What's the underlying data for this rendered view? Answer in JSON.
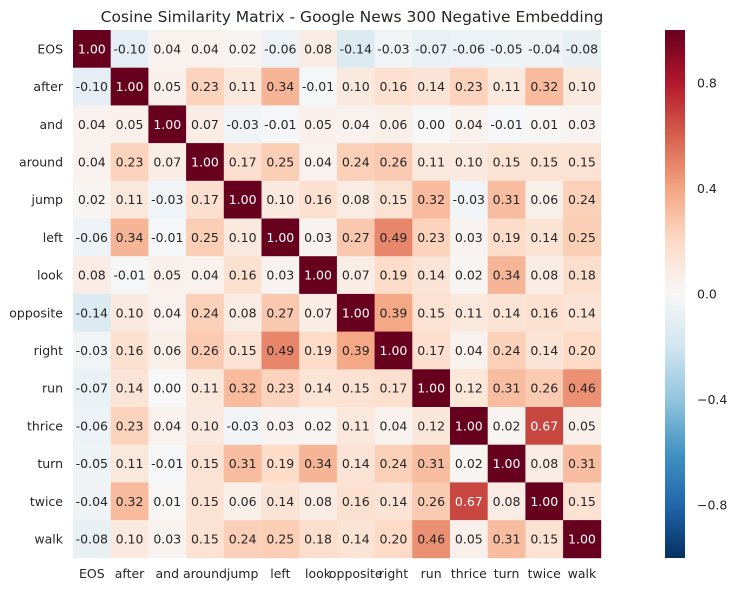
{
  "chart_data": {
    "type": "heatmap",
    "title": "Cosine Similarity Matrix - Google News 300 Negative Embedding",
    "xlabel": "",
    "ylabel": "",
    "labels": [
      "EOS",
      "after",
      "and",
      "around",
      "jump",
      "left",
      "look",
      "opposite",
      "right",
      "run",
      "thrice",
      "turn",
      "twice",
      "walk"
    ],
    "values": [
      [
        1.0,
        -0.1,
        0.04,
        0.04,
        0.02,
        -0.06,
        0.08,
        -0.14,
        -0.03,
        -0.07,
        -0.06,
        -0.05,
        -0.04,
        -0.08
      ],
      [
        -0.1,
        1.0,
        0.05,
        0.23,
        0.11,
        0.34,
        -0.01,
        0.1,
        0.16,
        0.14,
        0.23,
        0.11,
        0.32,
        0.1
      ],
      [
        0.04,
        0.05,
        1.0,
        0.07,
        -0.03,
        -0.01,
        0.05,
        0.04,
        0.06,
        0.0,
        0.04,
        -0.01,
        0.01,
        0.03
      ],
      [
        0.04,
        0.23,
        0.07,
        1.0,
        0.17,
        0.25,
        0.04,
        0.24,
        0.26,
        0.11,
        0.1,
        0.15,
        0.15,
        0.15
      ],
      [
        0.02,
        0.11,
        -0.03,
        0.17,
        1.0,
        0.1,
        0.16,
        0.08,
        0.15,
        0.32,
        -0.03,
        0.31,
        0.06,
        0.24
      ],
      [
        -0.06,
        0.34,
        -0.01,
        0.25,
        0.1,
        1.0,
        0.03,
        0.27,
        0.49,
        0.23,
        0.03,
        0.19,
        0.14,
        0.25
      ],
      [
        0.08,
        -0.01,
        0.05,
        0.04,
        0.16,
        0.03,
        1.0,
        0.07,
        0.19,
        0.14,
        0.02,
        0.34,
        0.08,
        0.18
      ],
      [
        -0.14,
        0.1,
        0.04,
        0.24,
        0.08,
        0.27,
        0.07,
        1.0,
        0.39,
        0.15,
        0.11,
        0.14,
        0.16,
        0.14
      ],
      [
        -0.03,
        0.16,
        0.06,
        0.26,
        0.15,
        0.49,
        0.19,
        0.39,
        1.0,
        0.17,
        0.04,
        0.24,
        0.14,
        0.2
      ],
      [
        -0.07,
        0.14,
        0.0,
        0.11,
        0.32,
        0.23,
        0.14,
        0.15,
        0.17,
        1.0,
        0.12,
        0.31,
        0.26,
        0.46
      ],
      [
        -0.06,
        0.23,
        0.04,
        0.1,
        -0.03,
        0.03,
        0.02,
        0.11,
        0.04,
        0.12,
        1.0,
        0.02,
        0.67,
        0.05
      ],
      [
        -0.05,
        0.11,
        -0.01,
        0.15,
        0.31,
        0.19,
        0.34,
        0.14,
        0.24,
        0.31,
        0.02,
        1.0,
        0.08,
        0.31
      ],
      [
        -0.04,
        0.32,
        0.01,
        0.15,
        0.06,
        0.14,
        0.08,
        0.16,
        0.14,
        0.26,
        0.67,
        0.08,
        1.0,
        0.15
      ],
      [
        -0.08,
        0.1,
        0.03,
        0.15,
        0.24,
        0.25,
        0.18,
        0.14,
        0.2,
        0.46,
        0.05,
        0.31,
        0.15,
        1.0
      ]
    ],
    "value_format": "0.00",
    "colorscale": "RdBu_r",
    "vmin": -1.0,
    "vmax": 1.0,
    "colorbar_ticks": [
      0.8,
      0.4,
      0.0,
      -0.4,
      -0.8
    ],
    "colorbar_tick_labels": [
      "0.8",
      "0.4",
      "0.0",
      "−0.4",
      "−0.8"
    ],
    "grid": false,
    "legend": "colorbar-right"
  }
}
